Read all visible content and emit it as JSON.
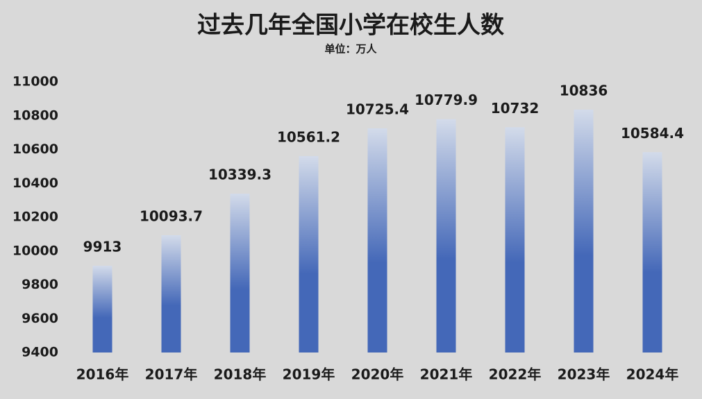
{
  "chart_data": {
    "type": "bar",
    "title": "过去几年全国小学在校生人数",
    "subtitle": "单位：万人",
    "categories": [
      "2016年",
      "2017年",
      "2018年",
      "2019年",
      "2020年",
      "2021年",
      "2022年",
      "2023年",
      "2024年"
    ],
    "values": [
      9913,
      10093.7,
      10339.3,
      10561.2,
      10725.4,
      10779.9,
      10732,
      10836,
      10584.4
    ],
    "color": "#4468b8",
    "ylim": [
      9400,
      11000
    ],
    "yticks": [
      9400,
      9600,
      9800,
      10000,
      10200,
      10400,
      10600,
      10800,
      11000
    ],
    "grid": false
  }
}
